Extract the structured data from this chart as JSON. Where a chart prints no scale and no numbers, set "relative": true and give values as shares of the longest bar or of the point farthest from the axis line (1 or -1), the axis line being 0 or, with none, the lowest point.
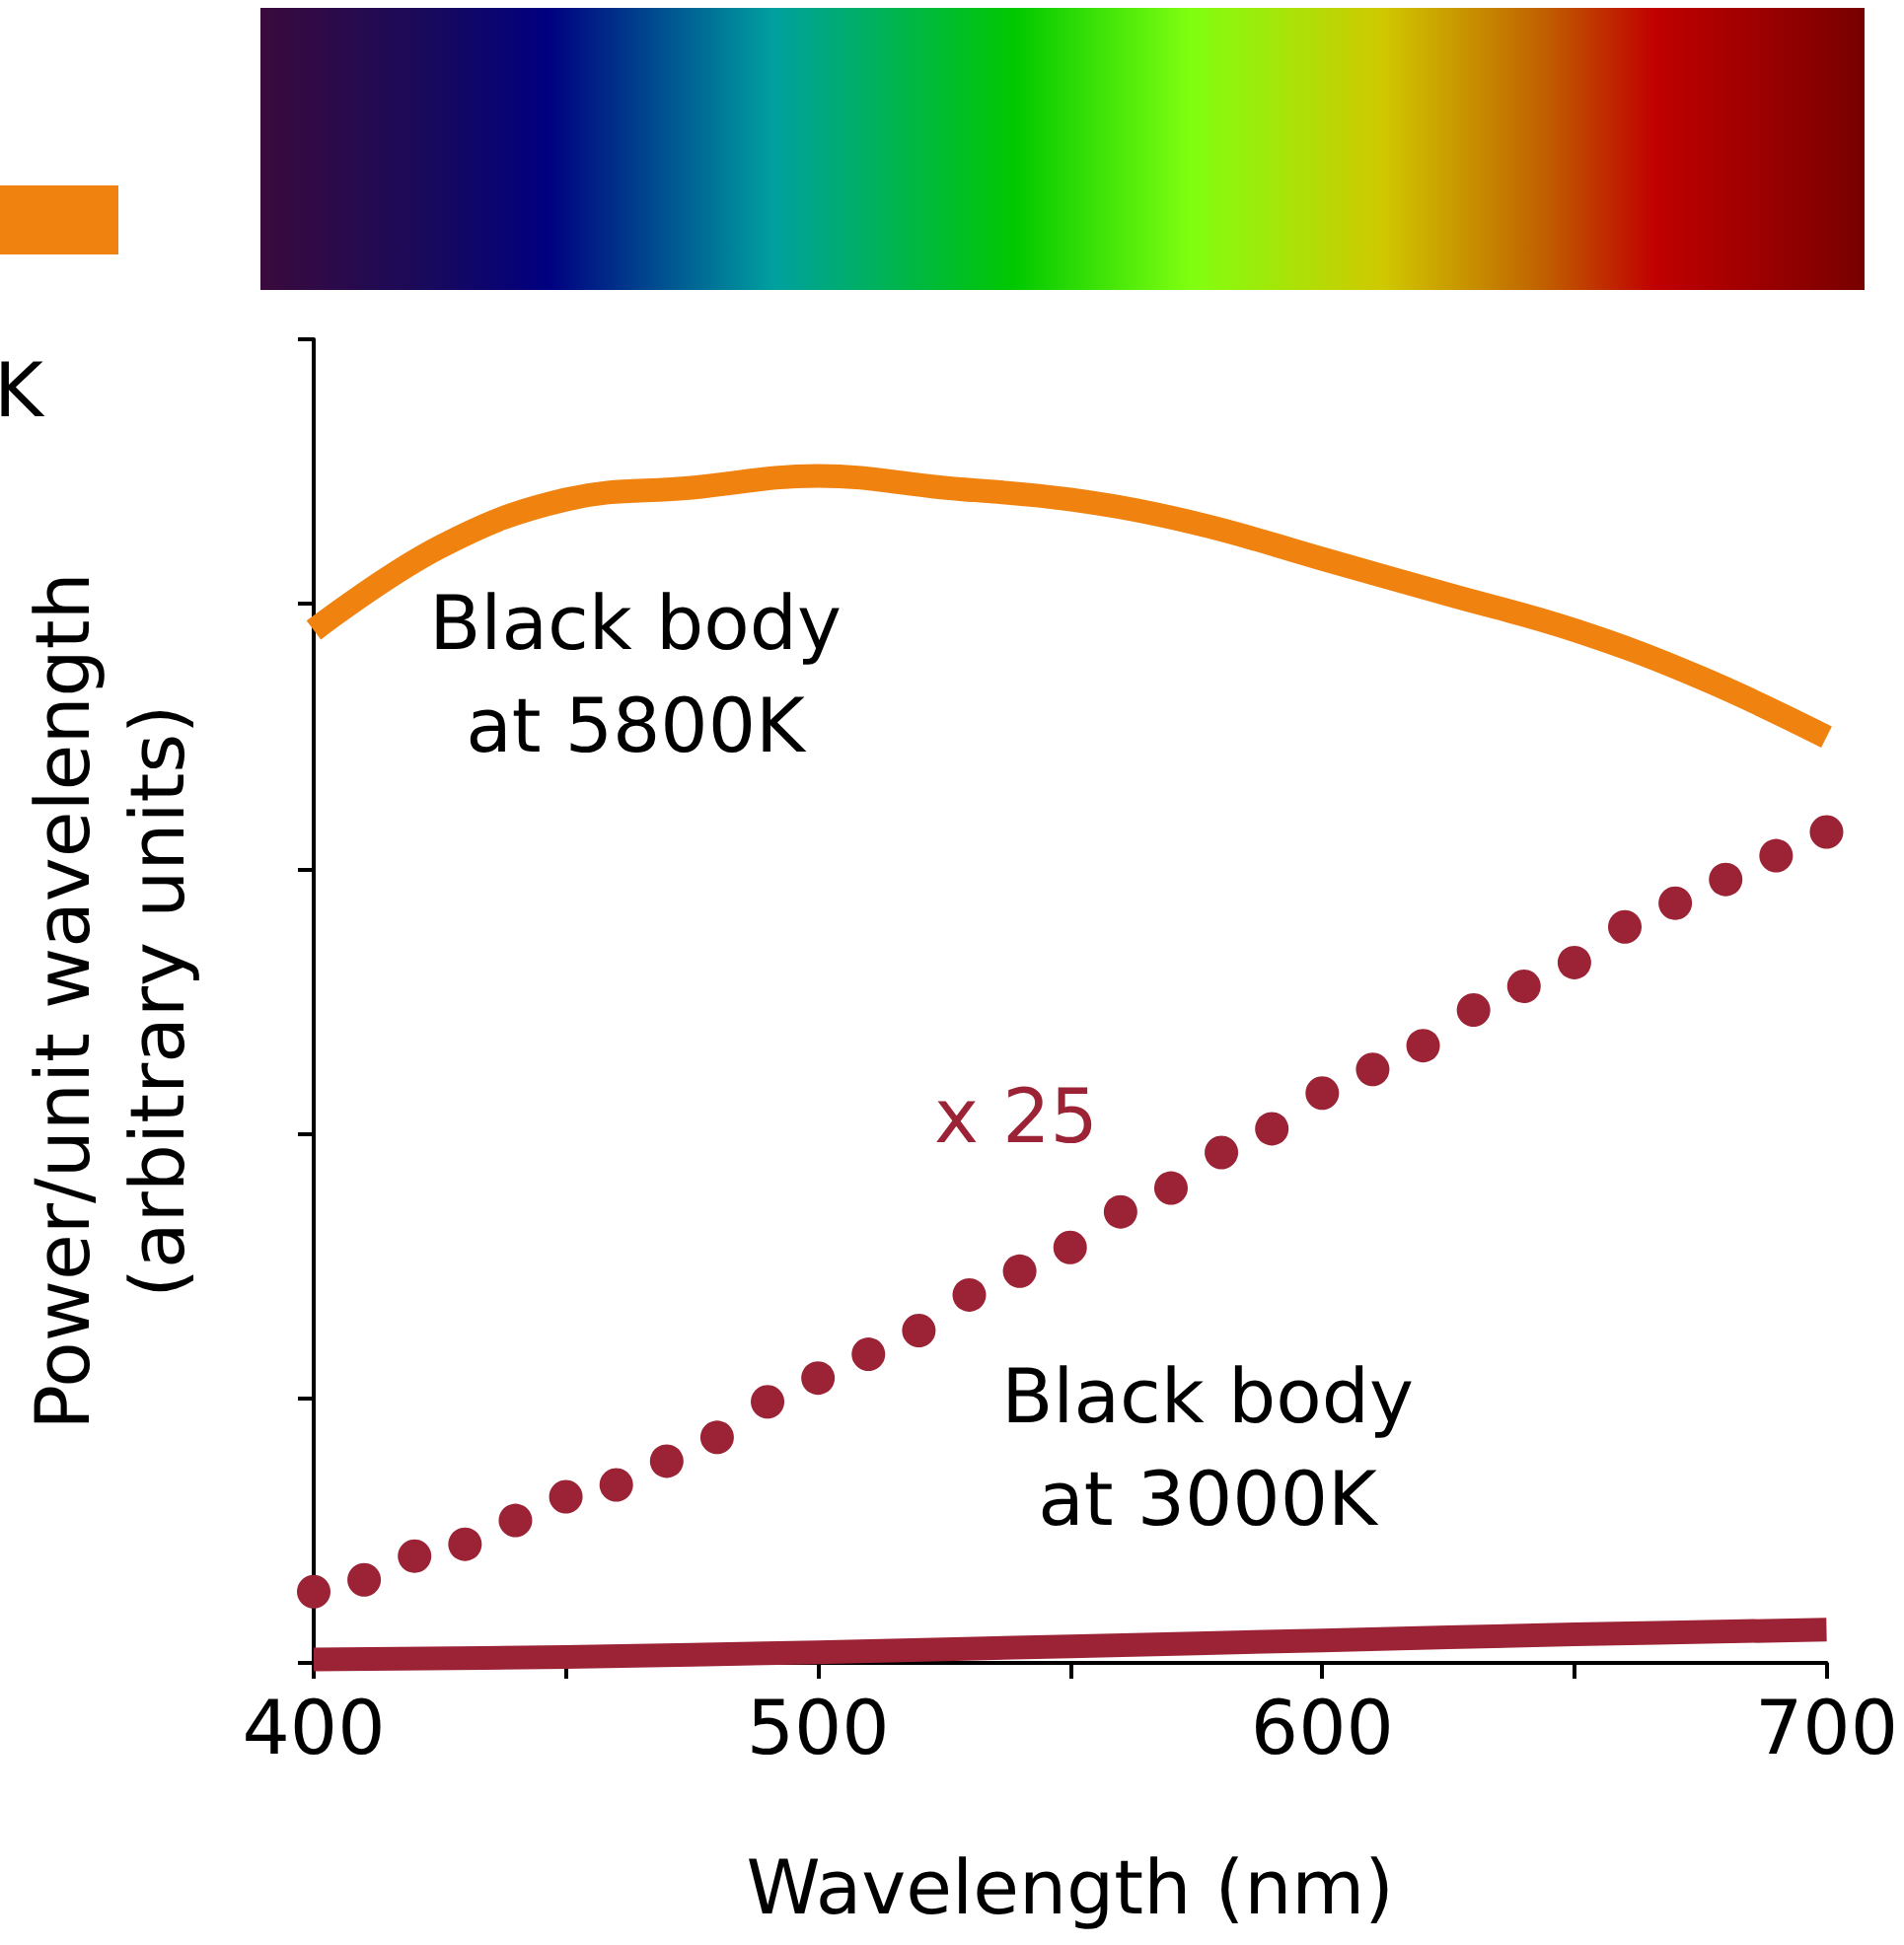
{
  "chart_data": {
    "type": "line",
    "relative": true,
    "xlabel": "Wavelength (nm)",
    "ylabel": "Power/unit wavelength\n(arbitrary units)",
    "xlim": [
      400,
      700
    ],
    "xticks": [
      400,
      {
        "value": 450,
        "label": null
      },
      500,
      {
        "value": 550,
        "label": null
      },
      600,
      {
        "value": 650,
        "label": null
      },
      700
    ],
    "annotations": [
      "Black body\nat 5800K",
      "x 25",
      "Black body\nat 3000K",
      "K"
    ],
    "series": [
      {
        "color": "#f0820f",
        "x": [
          400,
          425,
          450,
          475,
          500,
          525,
          550,
          575,
          600,
          625,
          650,
          675,
          700
        ],
        "values": [
          0.87,
          0.94,
          0.98,
          0.99,
          1.0,
          0.99,
          0.98,
          0.96,
          0.93,
          0.9,
          0.87,
          0.83,
          0.78
        ]
      },
      {
        "type": "scatter",
        "marker": "circle",
        "color": "#9b2335",
        "x": [
          400,
          410,
          420,
          430,
          440,
          450,
          460,
          470,
          480,
          490,
          500,
          510,
          520,
          530,
          540,
          550,
          560,
          570,
          580,
          590,
          600,
          610,
          620,
          630,
          640,
          650,
          660,
          670,
          680,
          690,
          700
        ],
        "values": [
          0.06,
          0.07,
          0.09,
          0.1,
          0.12,
          0.14,
          0.15,
          0.17,
          0.19,
          0.22,
          0.24,
          0.26,
          0.28,
          0.31,
          0.33,
          0.35,
          0.38,
          0.4,
          0.43,
          0.45,
          0.48,
          0.5,
          0.52,
          0.55,
          0.57,
          0.59,
          0.62,
          0.64,
          0.66,
          0.68,
          0.7
        ]
      },
      {
        "color": "#9b2335",
        "x": [
          400,
          450,
          500,
          550,
          600,
          650,
          700
        ],
        "values": [
          0.003,
          0.005,
          0.009,
          0.014,
          0.019,
          0.024,
          0.028
        ]
      }
    ]
  }
}
